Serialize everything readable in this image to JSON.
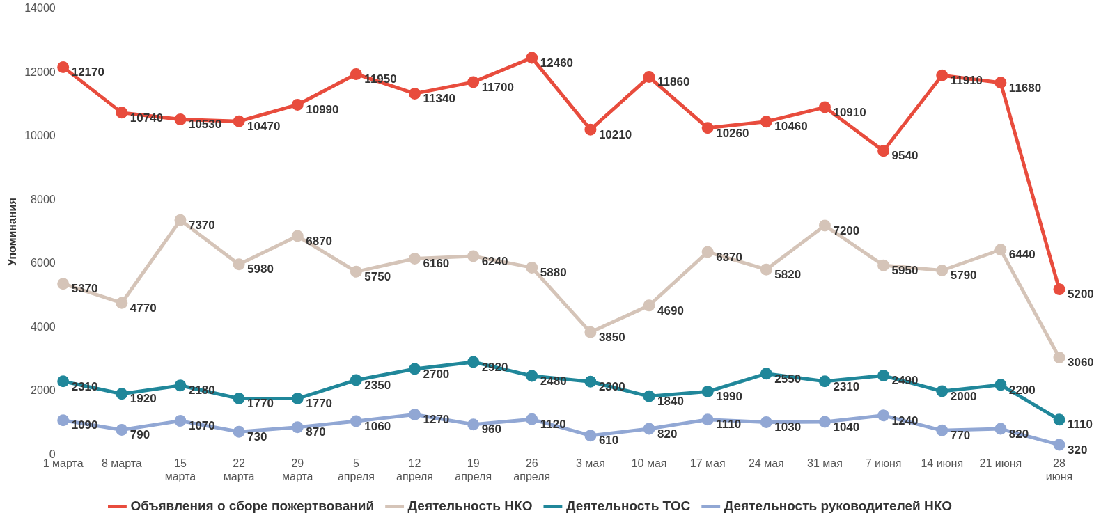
{
  "chart_data": {
    "type": "line",
    "ylabel": "Упоминания",
    "categories": [
      "1 марта",
      "8 марта",
      "15 марта",
      "22 марта",
      "29 марта",
      "5 апреля",
      "12 апреля",
      "19 апреля",
      "26 апреля",
      "3 мая",
      "10 мая",
      "17 мая",
      "24 мая",
      "31 мая",
      "7 июня",
      "14 июня",
      "21 июня",
      "28 июня"
    ],
    "series": [
      {
        "name": "Объявления о сборе пожертвований",
        "color": "#e84c3d",
        "values": [
          12170,
          10740,
          10530,
          10470,
          10990,
          11950,
          11340,
          11700,
          12460,
          10210,
          11860,
          10260,
          10460,
          10910,
          9540,
          11910,
          11680,
          5200
        ]
      },
      {
        "name": "Деятельность НКО",
        "color": "#d5c4b8",
        "values": [
          5370,
          4770,
          7370,
          5980,
          6870,
          5750,
          6160,
          6240,
          5880,
          3850,
          4690,
          6370,
          5820,
          7200,
          5950,
          5790,
          6440,
          3060
        ]
      },
      {
        "name": "Деятельность ТОС",
        "color": "#20879a",
        "values": [
          2310,
          1920,
          2180,
          1770,
          1770,
          2350,
          2700,
          2920,
          2480,
          2300,
          1840,
          1990,
          2550,
          2310,
          2490,
          2000,
          2200,
          1110
        ]
      },
      {
        "name": "Деятельность руководителей НКО",
        "color": "#91a7d4",
        "values": [
          1090,
          790,
          1070,
          730,
          870,
          1060,
          1270,
          960,
          1120,
          610,
          820,
          1110,
          1030,
          1040,
          1240,
          770,
          820,
          320
        ]
      }
    ],
    "ylim": [
      0,
      14000
    ],
    "yticks": [
      0,
      2000,
      4000,
      6000,
      8000,
      10000,
      12000,
      14000
    ],
    "grid": false,
    "legend": "bottom",
    "marker": "circle",
    "line_style": "solid",
    "data_labels": true
  }
}
